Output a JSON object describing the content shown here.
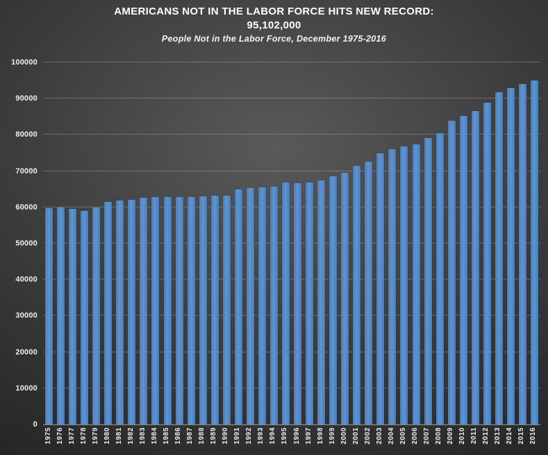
{
  "chart_data": {
    "type": "bar",
    "title": "AMERICANS NOT IN THE LABOR FORCE HITS NEW RECORD:",
    "title_value": "95,102,000",
    "subtitle": "People Not in the Labor Force, December 1975-2016",
    "categories": [
      "1975",
      "1976",
      "1977",
      "1978",
      "1979",
      "1980",
      "1981",
      "1982",
      "1983",
      "1984",
      "1985",
      "1986",
      "1987",
      "1988",
      "1989",
      "1990",
      "1991",
      "1992",
      "1993",
      "1994",
      "1995",
      "1996",
      "1997",
      "1998",
      "1999",
      "2000",
      "2001",
      "2002",
      "2003",
      "2004",
      "2005",
      "2006",
      "2007",
      "2008",
      "2009",
      "2010",
      "2011",
      "2012",
      "2013",
      "2014",
      "2015",
      "2016"
    ],
    "values": [
      59700,
      59900,
      59600,
      59000,
      59900,
      61500,
      61900,
      62100,
      62700,
      62800,
      62900,
      62800,
      62900,
      63000,
      63300,
      63300,
      64900,
      65300,
      65600,
      65800,
      66800,
      66600,
      66800,
      67500,
      68500,
      69600,
      71400,
      72700,
      75000,
      76000,
      76800,
      77400,
      79200,
      80400,
      83900,
      85200,
      86600,
      88800,
      91800,
      92900,
      94100,
      95102
    ],
    "xlabel": "",
    "ylabel": "",
    "ylim": [
      0,
      100000
    ],
    "ytick_step": 10000,
    "ytick_labels": [
      "0",
      "10000",
      "20000",
      "30000",
      "40000",
      "50000",
      "60000",
      "70000",
      "80000",
      "90000",
      "100000"
    ],
    "grid": true,
    "legend": "none",
    "bar_color": "#5589C7",
    "background_color": "#3A3A3A",
    "text_color": "#FFFFFF"
  }
}
